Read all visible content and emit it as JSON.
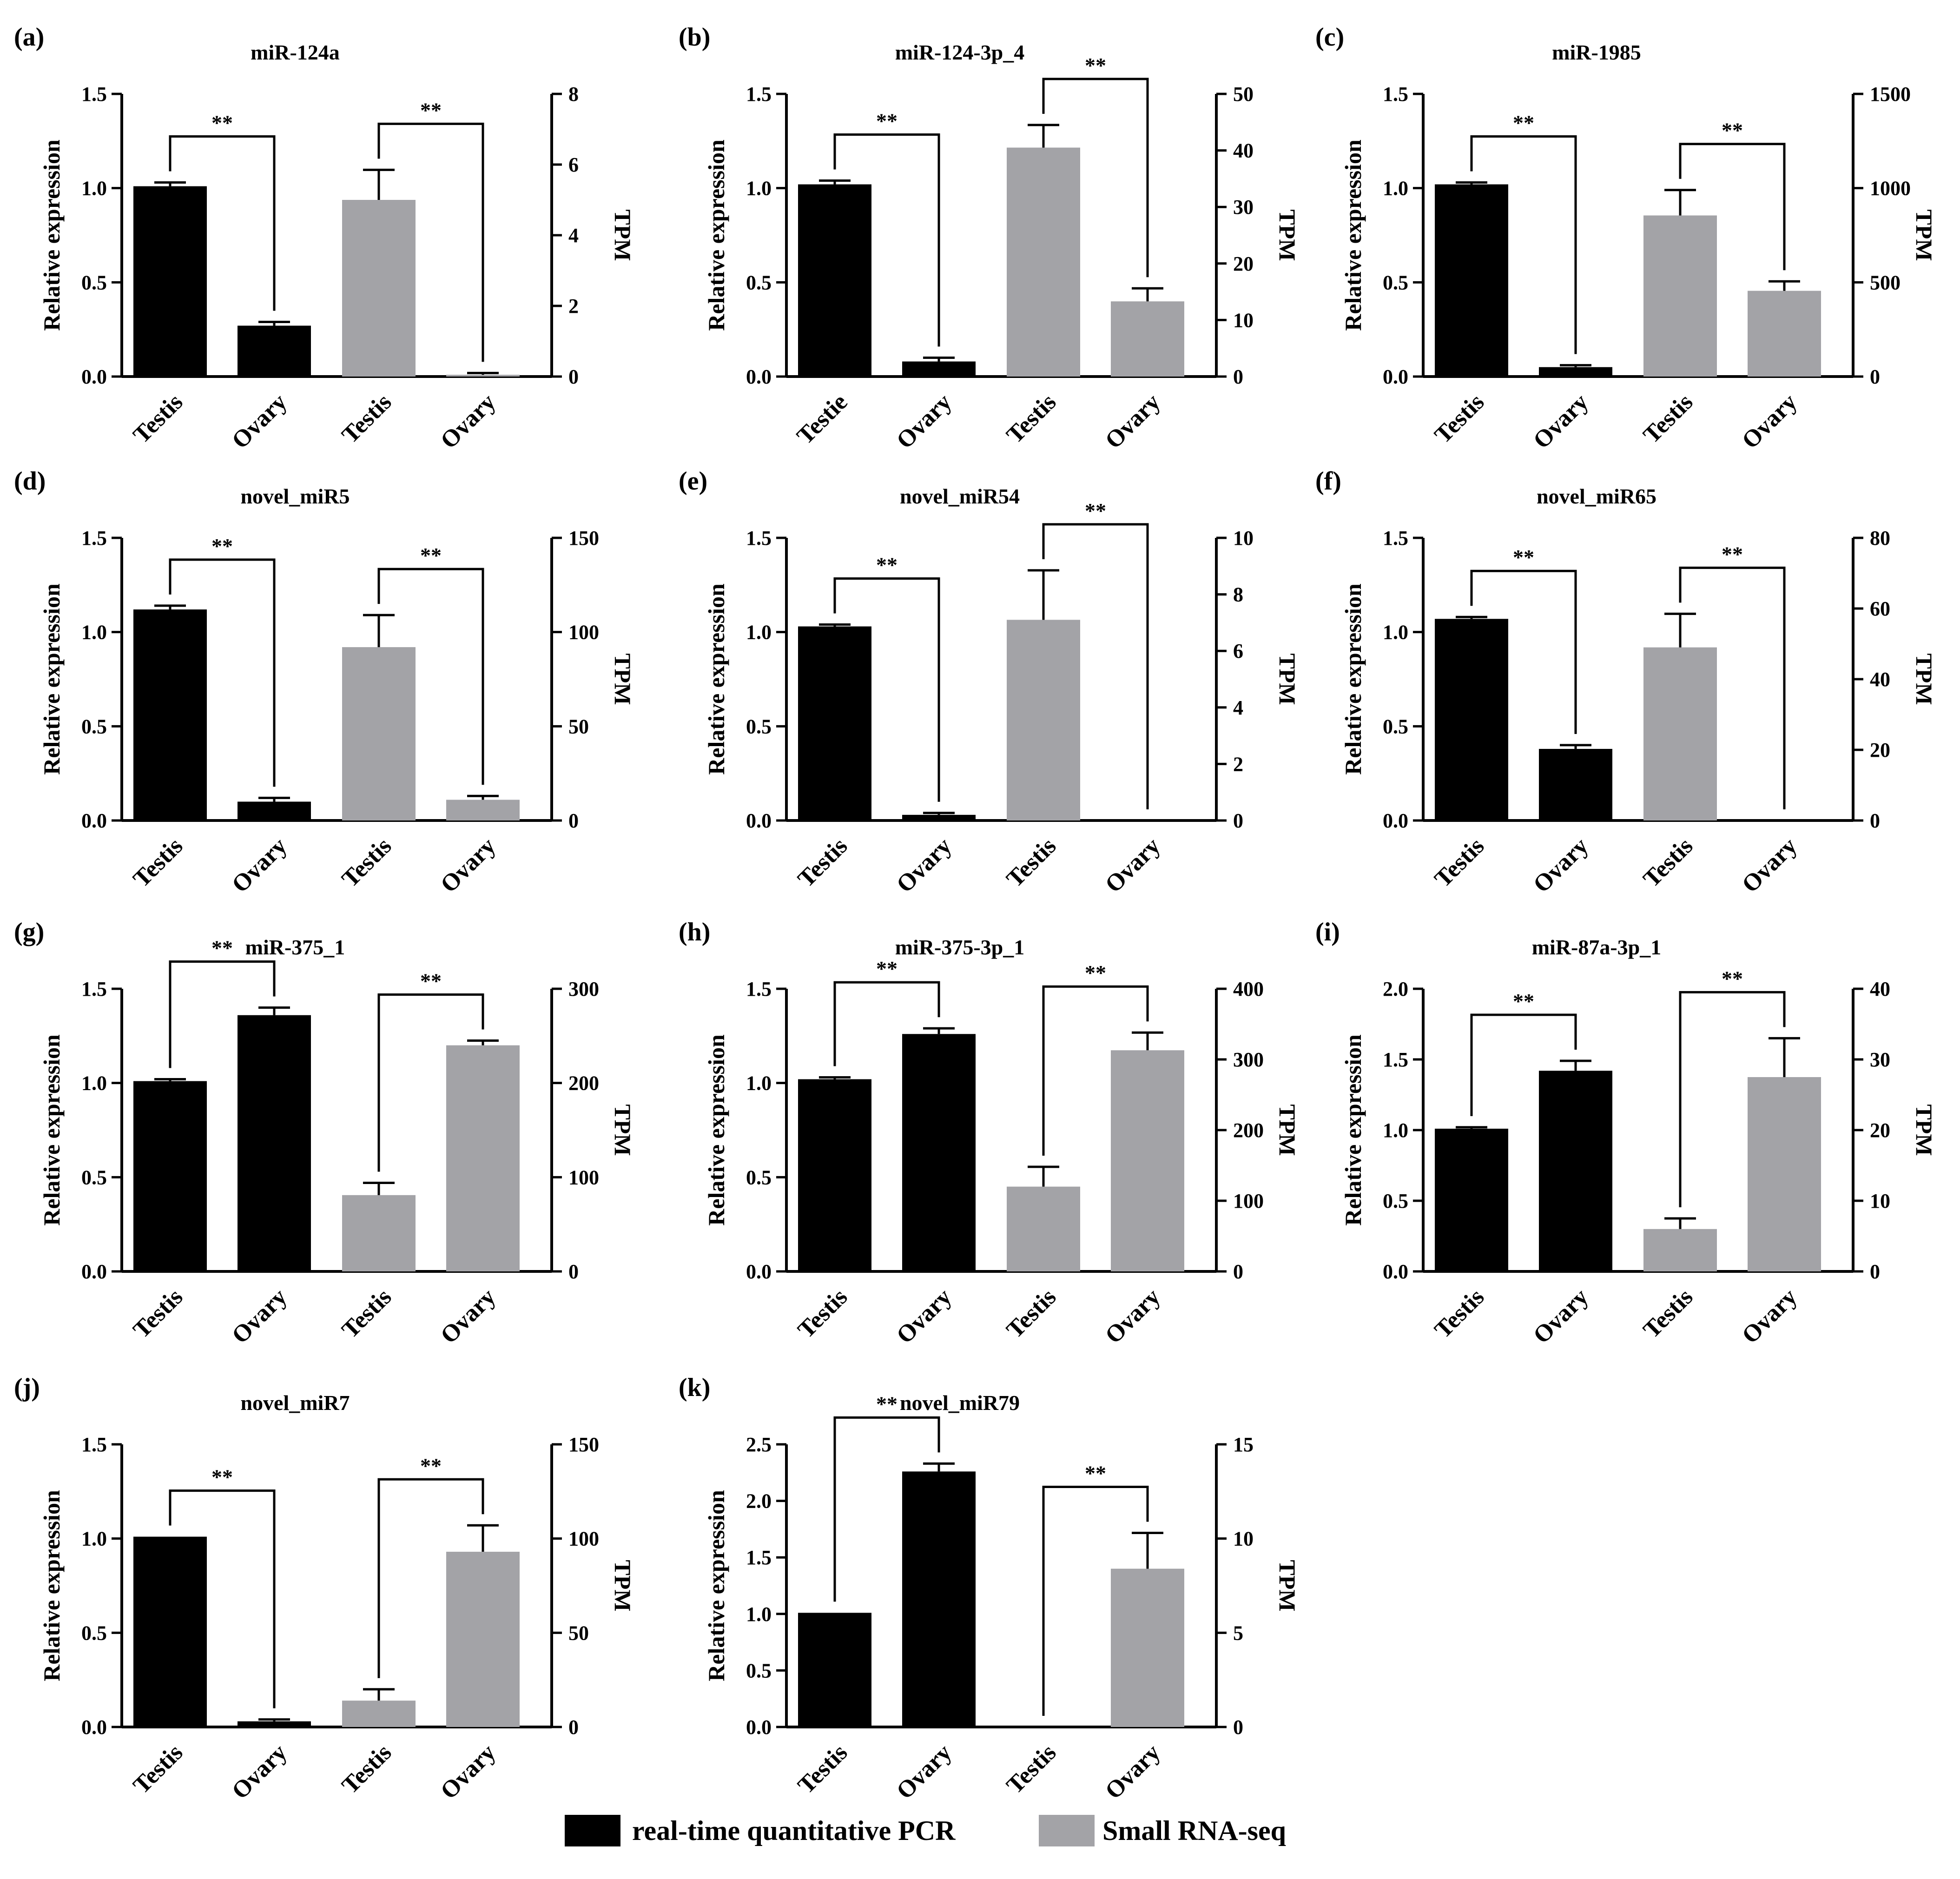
{
  "colors": {
    "qpcr": "#000000",
    "rnaseq": "#a3a3a7"
  },
  "legend": [
    {
      "label": "real-time quantitative PCR",
      "color": "#000000"
    },
    {
      "label": "Small RNA-seq",
      "color": "#a3a3a7"
    }
  ],
  "chart_data": [
    {
      "panel": "(a)",
      "title": "miR-124a",
      "type": "bar",
      "ylabel": "Relative expression",
      "y2label": "TPM",
      "categories": [
        "Testis",
        "Ovary",
        "Testis",
        "Ovary"
      ],
      "ylim": [
        0,
        1.5
      ],
      "y2lim": [
        0,
        8
      ],
      "yticks": [
        "0.0",
        "0.5",
        "1.0",
        "1.5"
      ],
      "y2ticks": [
        "0",
        "2",
        "4",
        "6",
        "8"
      ],
      "qpcr_values": [
        1.01,
        0.27
      ],
      "qpcr_errors": [
        0.02,
        0.02
      ],
      "rnaseq_values": [
        5.0,
        0.05
      ],
      "rnaseq_errors": [
        0.85,
        0.05
      ],
      "significance": [
        "**",
        "**"
      ]
    },
    {
      "panel": "(b)",
      "title": "miR-124-3p_4",
      "type": "bar",
      "ylabel": "Relative expression",
      "y2label": "TPM",
      "categories": [
        "Testie",
        "Ovary",
        "Testis",
        "Ovary"
      ],
      "ylim": [
        0,
        1.5
      ],
      "y2lim": [
        0,
        50
      ],
      "yticks": [
        "0.0",
        "0.5",
        "1.0",
        "1.5"
      ],
      "y2ticks": [
        "0",
        "10",
        "20",
        "30",
        "40",
        "50"
      ],
      "qpcr_values": [
        1.02,
        0.08
      ],
      "qpcr_errors": [
        0.02,
        0.02
      ],
      "rnaseq_values": [
        40.5,
        13.3
      ],
      "rnaseq_errors": [
        4.0,
        2.3
      ],
      "significance": [
        "**",
        "**"
      ]
    },
    {
      "panel": "(c)",
      "title": "miR-1985",
      "type": "bar",
      "ylabel": "Relative expression",
      "y2label": "TPM",
      "categories": [
        "Testis",
        "Ovary",
        "Testis",
        "Ovary"
      ],
      "ylim": [
        0,
        1.5
      ],
      "y2lim": [
        0,
        1500
      ],
      "yticks": [
        "0.0",
        "0.5",
        "1.0",
        "1.5"
      ],
      "y2ticks": [
        "0",
        "500",
        "1000",
        "1500"
      ],
      "qpcr_values": [
        1.02,
        0.05
      ],
      "qpcr_errors": [
        0.01,
        0.01
      ],
      "rnaseq_values": [
        855,
        455
      ],
      "rnaseq_errors": [
        135,
        50
      ],
      "significance": [
        "**",
        "**"
      ]
    },
    {
      "panel": "(d)",
      "title": "novel_miR5",
      "type": "bar",
      "ylabel": "Relative expression",
      "y2label": "TPM",
      "categories": [
        "Testis",
        "Ovary",
        "Testis",
        "Ovary"
      ],
      "ylim": [
        0,
        1.5
      ],
      "y2lim": [
        0,
        150
      ],
      "yticks": [
        "0.0",
        "0.5",
        "1.0",
        "1.5"
      ],
      "y2ticks": [
        "0",
        "50",
        "100",
        "150"
      ],
      "qpcr_values": [
        1.12,
        0.1
      ],
      "qpcr_errors": [
        0.02,
        0.02
      ],
      "rnaseq_values": [
        92,
        11
      ],
      "rnaseq_errors": [
        17,
        2
      ],
      "significance": [
        "**",
        "**"
      ]
    },
    {
      "panel": "(e)",
      "title": "novel_miR54",
      "type": "bar",
      "ylabel": "Relative expression",
      "y2label": "TPM",
      "categories": [
        "Testis",
        "Ovary",
        "Testis",
        "Ovary"
      ],
      "ylim": [
        0,
        1.5
      ],
      "y2lim": [
        0,
        10
      ],
      "yticks": [
        "0.0",
        "0.5",
        "1.0",
        "1.5"
      ],
      "y2ticks": [
        "0",
        "2",
        "4",
        "6",
        "8",
        "10"
      ],
      "qpcr_values": [
        1.03,
        0.03
      ],
      "qpcr_errors": [
        0.01,
        0.01
      ],
      "rnaseq_values": [
        7.1,
        0.0
      ],
      "rnaseq_errors": [
        1.75,
        0.0
      ],
      "significance": [
        "**",
        "**"
      ]
    },
    {
      "panel": "(f)",
      "title": "novel_miR65",
      "type": "bar",
      "ylabel": "Relative expression",
      "y2label": "TPM",
      "categories": [
        "Testis",
        "Ovary",
        "Testis",
        "Ovary"
      ],
      "ylim": [
        0,
        1.5
      ],
      "y2lim": [
        0,
        80
      ],
      "yticks": [
        "0.0",
        "0.5",
        "1.0",
        "1.5"
      ],
      "y2ticks": [
        "0",
        "20",
        "40",
        "60",
        "80"
      ],
      "qpcr_values": [
        1.07,
        0.38
      ],
      "qpcr_errors": [
        0.01,
        0.02
      ],
      "rnaseq_values": [
        49,
        0.0
      ],
      "rnaseq_errors": [
        9.5,
        0.0
      ],
      "significance": [
        "**",
        "**"
      ]
    },
    {
      "panel": "(g)",
      "title": "miR-375_1",
      "type": "bar",
      "ylabel": "Relative expression",
      "y2label": "TPM",
      "categories": [
        "Testis",
        "Ovary",
        "Testis",
        "Ovary"
      ],
      "ylim": [
        0,
        1.5
      ],
      "y2lim": [
        0,
        300
      ],
      "yticks": [
        "0.0",
        "0.5",
        "1.0",
        "1.5"
      ],
      "y2ticks": [
        "0",
        "100",
        "200",
        "300"
      ],
      "qpcr_values": [
        1.01,
        1.36
      ],
      "qpcr_errors": [
        0.01,
        0.04
      ],
      "rnaseq_values": [
        81,
        240
      ],
      "rnaseq_errors": [
        13,
        5
      ],
      "significance": [
        "**",
        "**"
      ]
    },
    {
      "panel": "(h)",
      "title": "miR-375-3p_1",
      "type": "bar",
      "ylabel": "Relative expression",
      "y2label": "TPM",
      "categories": [
        "Testis",
        "Ovary",
        "Testis",
        "Ovary"
      ],
      "ylim": [
        0,
        1.5
      ],
      "y2lim": [
        0,
        400
      ],
      "yticks": [
        "0.0",
        "0.5",
        "1.0",
        "1.5"
      ],
      "y2ticks": [
        "0",
        "100",
        "200",
        "300",
        "400"
      ],
      "qpcr_values": [
        1.02,
        1.26
      ],
      "qpcr_errors": [
        0.01,
        0.03
      ],
      "rnaseq_values": [
        120,
        313
      ],
      "rnaseq_errors": [
        28,
        25
      ],
      "significance": [
        "**",
        "**"
      ]
    },
    {
      "panel": "(i)",
      "title": "miR-87a-3p_1",
      "type": "bar",
      "ylabel": "Relative expression",
      "y2label": "TPM",
      "categories": [
        "Testis",
        "Ovary",
        "Testis",
        "Ovary"
      ],
      "ylim": [
        0,
        2.0
      ],
      "y2lim": [
        0,
        40
      ],
      "yticks": [
        "0.0",
        "0.5",
        "1.0",
        "1.5",
        "2.0"
      ],
      "y2ticks": [
        "0",
        "10",
        "20",
        "30",
        "40"
      ],
      "qpcr_values": [
        1.01,
        1.42
      ],
      "qpcr_errors": [
        0.01,
        0.07
      ],
      "rnaseq_values": [
        6,
        27.5
      ],
      "rnaseq_errors": [
        1.5,
        5.5
      ],
      "significance": [
        "**",
        "**"
      ]
    },
    {
      "panel": "(j)",
      "title": "novel_miR7",
      "type": "bar",
      "ylabel": "Relative expression",
      "y2label": "TPM",
      "categories": [
        "Testis",
        "Ovary",
        "Testis",
        "Ovary"
      ],
      "ylim": [
        0,
        1.5
      ],
      "y2lim": [
        0,
        150
      ],
      "yticks": [
        "0.0",
        "0.5",
        "1.0",
        "1.5"
      ],
      "y2ticks": [
        "0",
        "50",
        "100",
        "150"
      ],
      "qpcr_values": [
        1.01,
        0.03
      ],
      "qpcr_errors": [
        0.0,
        0.01
      ],
      "rnaseq_values": [
        14,
        93
      ],
      "rnaseq_errors": [
        6,
        14
      ],
      "significance": [
        "**",
        "**"
      ]
    },
    {
      "panel": "(k)",
      "title": "novel_miR79",
      "type": "bar",
      "ylabel": "Relative expression",
      "y2label": "TPM",
      "categories": [
        "Testis",
        "Ovary",
        "Testis",
        "Ovary"
      ],
      "ylim": [
        0,
        2.5
      ],
      "y2lim": [
        0,
        15
      ],
      "yticks": [
        "0.0",
        "0.5",
        "1.0",
        "1.5",
        "2.0",
        "2.5"
      ],
      "y2ticks": [
        "0",
        "5",
        "10",
        "15"
      ],
      "qpcr_values": [
        1.01,
        2.26
      ],
      "qpcr_errors": [
        0.0,
        0.07
      ],
      "rnaseq_values": [
        0.0,
        8.4
      ],
      "rnaseq_errors": [
        0.0,
        1.9
      ],
      "significance": [
        "**",
        "**"
      ]
    }
  ]
}
